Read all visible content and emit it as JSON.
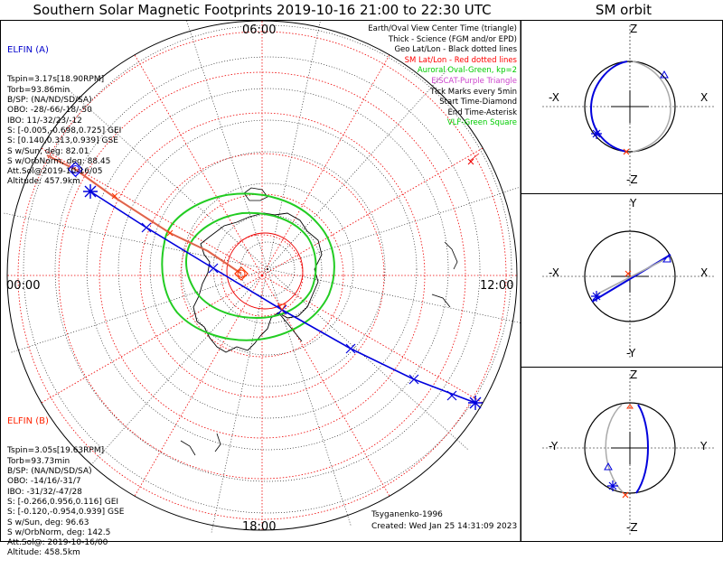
{
  "title": "Southern Solar Magnetic Footprints 2019-10-16 21:00 to 22:30 UTC",
  "orbit_title": "SM orbit",
  "mlt_labels": {
    "top": "06:00",
    "left": "00:00",
    "right": "12:00",
    "bottom": "18:00"
  },
  "elfin_a": {
    "header": "ELFIN (A)",
    "color": "#0000cc",
    "lines": [
      "Tspin=3.17s[18.90RPM]",
      "Torb=93.86min",
      "B/SP: (NA/ND/SD/SA)",
      "OBO: -28/-66/-18/-50",
      "IBO: 11/-32/23/-12",
      "S: [-0.005,-0.698,0.725] GEI",
      "S: [0.140,0.313,0.939] GSE",
      "S w/Sun, deg: 82.01",
      "S w/OrbNorm, deg: 88.45",
      "Att.Sol@2019-10-16/05",
      "Altitude: 457.9km"
    ]
  },
  "elfin_b": {
    "header": "ELFIN (B)",
    "color": "#ff2200",
    "lines": [
      "Tspin=3.05s[19.63RPM]",
      "Torb=93.73min",
      "B/SP: (NA/ND/SD/SA)",
      "OBO: -14/16/-31/7",
      "IBO: -31/32/-47/28",
      "S: [-0.266,0.956,0.116] GEI",
      "S: [-0.120,-0.954,0.939] GSE",
      "S w/Sun, deg: 96.63",
      "S w/OrbNorm, deg: 142.5",
      "Att.Sol@: 2019-10-16/00",
      "Altitude: 458.5km"
    ]
  },
  "legend": [
    {
      "text": "Earth/Oval View Center Time (triangle)",
      "color": "#000000"
    },
    {
      "text": "Thick - Science (FGM and/or EPD)",
      "color": "#000000"
    },
    {
      "text": "Geo Lat/Lon - Black dotted lines",
      "color": "#000000"
    },
    {
      "text": "SM Lat/Lon - Red dotted lines",
      "color": "#ff0000"
    },
    {
      "text": "Auroral Oval-Green, kp=2",
      "color": "#00cc00"
    },
    {
      "text": "EISCAT-Purple Triangle",
      "color": "#cc44cc"
    },
    {
      "text": "Tick Marks every 5min",
      "color": "#000000"
    },
    {
      "text": "Start Time-Diamond",
      "color": "#000000"
    },
    {
      "text": "End Time-Asterisk",
      "color": "#000000"
    },
    {
      "text": "VLF-Green Square",
      "color": "#00cc00"
    }
  ],
  "footer": {
    "author": "Tsyganenko-1996",
    "created": "Created: Wed Jan 25 14:31:09 2023"
  },
  "orbit_panels": [
    {
      "top": "Z",
      "bottom": "-Z",
      "left": "-X",
      "right": "X"
    },
    {
      "top": "Y",
      "bottom": "-Y",
      "left": "-X",
      "right": "X"
    },
    {
      "top": "Z",
      "bottom": "-Z",
      "left": "-Y",
      "right": "Y"
    }
  ]
}
